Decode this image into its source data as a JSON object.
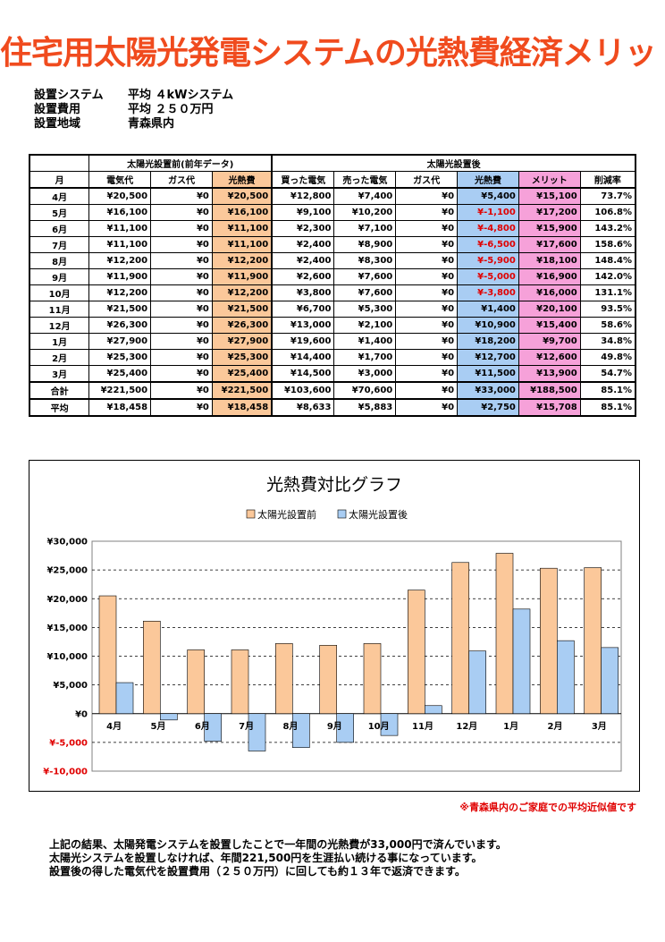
{
  "title": "住宅用太陽光発電システムの光熱費経済メリット",
  "info": [
    {
      "key": "設置システム",
      "value": "平均 ４kWシステム"
    },
    {
      "key": "設置費用",
      "value": "平均 ２５０万円"
    },
    {
      "key": "設置地域",
      "value": "青森県内"
    }
  ],
  "table": {
    "group_before": "太陽光設置前(前年データ)",
    "group_after": "太陽光設置後",
    "headers": [
      "月",
      "電気代",
      "ガス代",
      "光熱費",
      "買った電気",
      "売った電気",
      "ガス代",
      "光熱費",
      "メリット",
      "削減率"
    ],
    "rows": [
      [
        "4月",
        "¥20,500",
        "¥0",
        "¥20,500",
        "¥12,800",
        "¥7,400",
        "¥0",
        "¥5,400",
        "¥15,100",
        "73.7%"
      ],
      [
        "5月",
        "¥16,100",
        "¥0",
        "¥16,100",
        "¥9,100",
        "¥10,200",
        "¥0",
        "¥-1,100",
        "¥17,200",
        "106.8%"
      ],
      [
        "6月",
        "¥11,100",
        "¥0",
        "¥11,100",
        "¥2,300",
        "¥7,100",
        "¥0",
        "¥-4,800",
        "¥15,900",
        "143.2%"
      ],
      [
        "7月",
        "¥11,100",
        "¥0",
        "¥11,100",
        "¥2,400",
        "¥8,900",
        "¥0",
        "¥-6,500",
        "¥17,600",
        "158.6%"
      ],
      [
        "8月",
        "¥12,200",
        "¥0",
        "¥12,200",
        "¥2,400",
        "¥8,300",
        "¥0",
        "¥-5,900",
        "¥18,100",
        "148.4%"
      ],
      [
        "9月",
        "¥11,900",
        "¥0",
        "¥11,900",
        "¥2,600",
        "¥7,600",
        "¥0",
        "¥-5,000",
        "¥16,900",
        "142.0%"
      ],
      [
        "10月",
        "¥12,200",
        "¥0",
        "¥12,200",
        "¥3,800",
        "¥7,600",
        "¥0",
        "¥-3,800",
        "¥16,000",
        "131.1%"
      ],
      [
        "11月",
        "¥21,500",
        "¥0",
        "¥21,500",
        "¥6,700",
        "¥5,300",
        "¥0",
        "¥1,400",
        "¥20,100",
        "93.5%"
      ],
      [
        "12月",
        "¥26,300",
        "¥0",
        "¥26,300",
        "¥13,000",
        "¥2,100",
        "¥0",
        "¥10,900",
        "¥15,400",
        "58.6%"
      ],
      [
        "1月",
        "¥27,900",
        "¥0",
        "¥27,900",
        "¥19,600",
        "¥1,400",
        "¥0",
        "¥18,200",
        "¥9,700",
        "34.8%"
      ],
      [
        "2月",
        "¥25,300",
        "¥0",
        "¥25,300",
        "¥14,400",
        "¥1,700",
        "¥0",
        "¥12,700",
        "¥12,600",
        "49.8%"
      ],
      [
        "3月",
        "¥25,400",
        "¥0",
        "¥25,400",
        "¥14,500",
        "¥3,000",
        "¥0",
        "¥11,500",
        "¥13,900",
        "54.7%"
      ]
    ],
    "total": [
      "合計",
      "¥221,500",
      "¥0",
      "¥221,500",
      "¥103,600",
      "¥70,600",
      "¥0",
      "¥33,000",
      "¥188,500",
      "85.1%"
    ],
    "average": [
      "平均",
      "¥18,458",
      "¥0",
      "¥18,458",
      "¥8,633",
      "¥5,883",
      "¥0",
      "¥2,750",
      "¥15,708",
      "85.1%"
    ]
  },
  "chart_data": {
    "type": "bar",
    "title": "光熱費対比グラフ",
    "categories": [
      "4月",
      "5月",
      "6月",
      "7月",
      "8月",
      "9月",
      "10月",
      "11月",
      "12月",
      "1月",
      "2月",
      "3月"
    ],
    "series": [
      {
        "name": "太陽光設置前",
        "color": "#fbc89a",
        "values": [
          20500,
          16100,
          11100,
          11100,
          12200,
          11900,
          12200,
          21500,
          26300,
          27900,
          25300,
          25400
        ]
      },
      {
        "name": "太陽光設置後",
        "color": "#a9cdf3",
        "values": [
          5400,
          -1100,
          -4800,
          -6500,
          -5900,
          -5000,
          -3800,
          1400,
          10900,
          18200,
          12700,
          11500
        ]
      }
    ],
    "yticks": [
      "¥30,000",
      "¥25,000",
      "¥20,000",
      "¥15,000",
      "¥10,000",
      "¥5,000",
      "¥0",
      "¥-5,000",
      "¥-10,000"
    ],
    "ylim": [
      -10000,
      30000
    ],
    "legend": "top"
  },
  "note": "※青森県内のご家庭での平均近似値です",
  "summary": [
    "上記の結果、太陽発電システムを設置したことで一年間の光熱費が33,000円で済んでいます。",
    "太陽光システムを設置しなければ、年間221,500円を生涯払い続ける事になっています。",
    "設置後の得した電気代を設置費用（２５０万円）に回しても約１３年で返済できます。"
  ]
}
